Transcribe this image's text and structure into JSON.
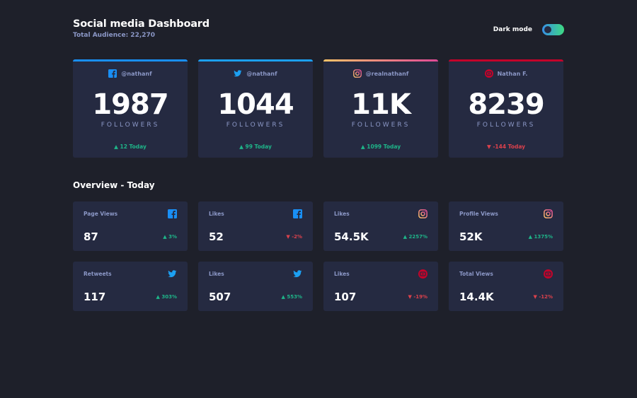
{
  "header": {
    "title": "Social media Dashboard",
    "subtitle": "Total Audience: 22,270",
    "toggle_label": "Dark mode"
  },
  "cards": [
    {
      "platform": "facebook",
      "icon": "facebook-icon",
      "handle": "@nathanf",
      "count": "1987",
      "label": "FOLLOWERS",
      "today": "▲ 12 Today",
      "trend": "up",
      "color": "#198ff5"
    },
    {
      "platform": "twitter",
      "icon": "twitter-icon",
      "handle": "@nathanf",
      "count": "1044",
      "label": "FOLLOWERS",
      "today": "▲ 99 Today",
      "trend": "up",
      "color": "#1ca0f2"
    },
    {
      "platform": "instagram",
      "icon": "instagram-icon",
      "handle": "@realnathanf",
      "count": "11K",
      "label": "FOLLOWERS",
      "today": "▲ 1099 Today",
      "trend": "up",
      "color": "#df4996"
    },
    {
      "platform": "youtube",
      "icon": "youtube-icon",
      "handle": "Nathan F.",
      "count": "8239",
      "label": "FOLLOWERS",
      "today": "▼ -144 Today",
      "trend": "down",
      "color": "#c4032a"
    }
  ],
  "overview": {
    "title": "Overview - Today",
    "tiles": [
      {
        "label": "Page Views",
        "icon": "facebook-icon",
        "value": "87",
        "change": "▲ 3%",
        "trend": "up"
      },
      {
        "label": "Likes",
        "icon": "facebook-icon",
        "value": "52",
        "change": "▼ -2%",
        "trend": "down"
      },
      {
        "label": "Likes",
        "icon": "instagram-icon",
        "value": "54.5K",
        "change": "▲ 2257%",
        "trend": "up"
      },
      {
        "label": "Profile Views",
        "icon": "instagram-icon",
        "value": "52K",
        "change": "▲ 1375%",
        "trend": "up"
      },
      {
        "label": "Retweets",
        "icon": "twitter-icon",
        "value": "117",
        "change": "▲ 303%",
        "trend": "up"
      },
      {
        "label": "Likes",
        "icon": "twitter-icon",
        "value": "507",
        "change": "▲ 553%",
        "trend": "up"
      },
      {
        "label": "Likes",
        "icon": "youtube-icon",
        "value": "107",
        "change": "▼ -19%",
        "trend": "down"
      },
      {
        "label": "Total Views",
        "icon": "youtube-icon",
        "value": "14.4K",
        "change": "▼ -12%",
        "trend": "down"
      }
    ]
  },
  "colors": {
    "background": "#1e202a",
    "card": "#252a41",
    "text_muted": "#8b97c6",
    "up": "#1eb589",
    "down": "#dc414c"
  }
}
